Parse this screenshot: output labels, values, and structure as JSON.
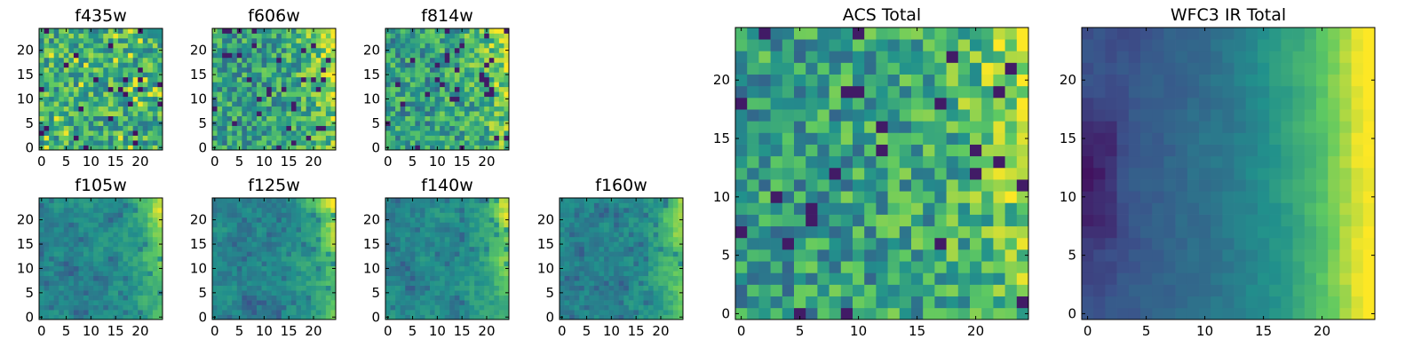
{
  "figure": {
    "description_free": true
  },
  "colormap": [
    "#440154",
    "#3b528b",
    "#21918c",
    "#5ec962",
    "#fde725"
  ],
  "chart_data": [
    {
      "type": "heatmap",
      "id": "f435w",
      "title": "f435w",
      "grid": [
        25,
        25
      ],
      "xlim": [
        0,
        24
      ],
      "ylim": [
        0,
        24
      ],
      "xticks": [
        "0",
        "5",
        "10",
        "15",
        "20"
      ],
      "yticks": [
        "0",
        "5",
        "10",
        "15",
        "20"
      ],
      "pattern": "uniform-noise"
    },
    {
      "type": "heatmap",
      "id": "f606w",
      "title": "f606w",
      "grid": [
        25,
        25
      ],
      "xlim": [
        0,
        24
      ],
      "ylim": [
        0,
        24
      ],
      "xticks": [
        "0",
        "5",
        "10",
        "15",
        "20"
      ],
      "yticks": [
        "0",
        "5",
        "10",
        "15",
        "20"
      ],
      "pattern": "noise-right-bright"
    },
    {
      "type": "heatmap",
      "id": "f814w",
      "title": "f814w",
      "grid": [
        25,
        25
      ],
      "xlim": [
        0,
        24
      ],
      "ylim": [
        0,
        24
      ],
      "xticks": [
        "0",
        "5",
        "10",
        "15",
        "20"
      ],
      "yticks": [
        "0",
        "5",
        "10",
        "15",
        "20"
      ],
      "pattern": "noise-right-bright"
    },
    {
      "type": "heatmap",
      "id": "f105w",
      "title": "f105w",
      "grid": [
        25,
        25
      ],
      "xlim": [
        0,
        24
      ],
      "ylim": [
        0,
        24
      ],
      "xticks": [
        "0",
        "5",
        "10",
        "15",
        "20"
      ],
      "yticks": [
        "0",
        "5",
        "10",
        "15",
        "20"
      ],
      "pattern": "smooth-right-bright"
    },
    {
      "type": "heatmap",
      "id": "f125w",
      "title": "f125w",
      "grid": [
        25,
        25
      ],
      "xlim": [
        0,
        24
      ],
      "ylim": [
        0,
        24
      ],
      "xticks": [
        "0",
        "5",
        "10",
        "15",
        "20"
      ],
      "yticks": [
        "0",
        "5",
        "10",
        "15",
        "20"
      ],
      "pattern": "smooth-right-bright"
    },
    {
      "type": "heatmap",
      "id": "f140w",
      "title": "f140w",
      "grid": [
        25,
        25
      ],
      "xlim": [
        0,
        24
      ],
      "ylim": [
        0,
        24
      ],
      "xticks": [
        "0",
        "5",
        "10",
        "15",
        "20"
      ],
      "yticks": [
        "0",
        "5",
        "10",
        "15",
        "20"
      ],
      "pattern": "smooth-right-bright"
    },
    {
      "type": "heatmap",
      "id": "f160w",
      "title": "f160w",
      "grid": [
        25,
        25
      ],
      "xlim": [
        0,
        24
      ],
      "ylim": [
        0,
        24
      ],
      "xticks": [
        "0",
        "5",
        "10",
        "15",
        "20"
      ],
      "yticks": [
        "0",
        "5",
        "10",
        "15",
        "20"
      ],
      "pattern": "smooth-right-bright"
    },
    {
      "type": "heatmap",
      "id": "acs-total",
      "title": "ACS Total",
      "grid": [
        25,
        25
      ],
      "xlim": [
        0,
        24
      ],
      "ylim": [
        0,
        24
      ],
      "xticks": [
        "0",
        "5",
        "10",
        "15",
        "20"
      ],
      "yticks": [
        "0",
        "5",
        "10",
        "15",
        "20"
      ],
      "pattern": "noise-right-bright"
    },
    {
      "type": "heatmap",
      "id": "wfc3-ir-total",
      "title": "WFC3 IR Total",
      "grid": [
        25,
        25
      ],
      "xlim": [
        0,
        24
      ],
      "ylim": [
        0,
        24
      ],
      "xticks": [
        "0",
        "5",
        "10",
        "15",
        "20"
      ],
      "yticks": [
        "0",
        "5",
        "10",
        "15",
        "20"
      ],
      "pattern": "gradient-right-bright"
    }
  ]
}
